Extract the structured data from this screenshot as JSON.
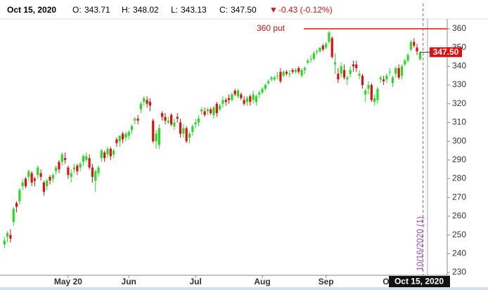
{
  "header": {
    "date": "Oct 15, 2020",
    "open_label": "O:",
    "open": "343.71",
    "high_label": "H:",
    "high": "348.02",
    "low_label": "L:",
    "low": "343.13",
    "close_label": "C:",
    "close": "347.50",
    "change_marker": "▼",
    "change": "-0.43 (-0.12%)"
  },
  "chart_data": {
    "type": "candlestick",
    "open": [
      245,
      249,
      250,
      257,
      267,
      268,
      276,
      280,
      281,
      283,
      280,
      282,
      283,
      278,
      276,
      281,
      280,
      284,
      289,
      289,
      291,
      286,
      281,
      285,
      287,
      286,
      289,
      290,
      291,
      286,
      279,
      283,
      291,
      294,
      293,
      296,
      293,
      301,
      300,
      304,
      302,
      303,
      306,
      311,
      312,
      317,
      321,
      322,
      321,
      311,
      300,
      298,
      315,
      313,
      310,
      314,
      308,
      313,
      310,
      304,
      307,
      302,
      305,
      309,
      310,
      316,
      316,
      316,
      317,
      314,
      320,
      317,
      320,
      322,
      323,
      322,
      327,
      324,
      325,
      322,
      321,
      324,
      322,
      321,
      325,
      326,
      328,
      331,
      333,
      333,
      335,
      337,
      335,
      337,
      336,
      338,
      337,
      339,
      335,
      338,
      342,
      344,
      344,
      348,
      348,
      351,
      350,
      353,
      355,
      341,
      336,
      336,
      338,
      333,
      336,
      341,
      341,
      335,
      335,
      325,
      328,
      330,
      321,
      322,
      333,
      333,
      333,
      337,
      331,
      336,
      339,
      335,
      341,
      343,
      349,
      353,
      350,
      343.71
    ],
    "high": [
      249,
      252,
      253,
      265,
      268,
      275,
      280,
      281,
      285,
      284,
      281,
      287,
      285,
      279,
      280,
      282,
      283,
      287,
      290,
      294,
      294,
      287,
      285,
      288,
      288,
      289,
      293,
      294,
      293,
      288,
      285,
      287,
      296,
      295,
      297,
      297,
      296,
      302,
      303,
      305,
      305,
      306,
      309,
      313,
      314,
      321,
      324,
      324,
      323,
      312,
      306,
      309,
      316,
      315,
      313,
      315,
      312,
      315,
      312,
      309,
      308,
      305,
      309,
      312,
      314,
      318,
      318,
      318,
      318,
      319,
      321,
      320,
      324,
      323,
      325,
      326,
      328,
      328,
      326,
      324,
      324,
      325,
      327,
      325,
      327,
      329,
      331,
      333,
      335,
      335,
      337,
      339,
      338,
      338,
      338,
      339,
      339,
      340,
      339,
      340,
      344,
      346,
      348,
      349,
      350,
      352,
      353,
      359,
      356,
      347,
      339,
      342,
      341,
      335,
      340,
      343,
      343,
      338,
      336,
      328,
      332,
      331,
      325,
      329,
      335,
      335,
      336,
      339,
      335,
      340,
      341,
      341,
      344,
      347,
      354,
      355,
      352,
      348.02
    ],
    "low": [
      243,
      246,
      246,
      255,
      262,
      266,
      274,
      275,
      279,
      276,
      276,
      280,
      279,
      271,
      274,
      277,
      278,
      282,
      283,
      287,
      288,
      280,
      278,
      283,
      282,
      284,
      287,
      289,
      285,
      278,
      273,
      281,
      289,
      289,
      291,
      290,
      291,
      297,
      297,
      299,
      300,
      301,
      304,
      309,
      309,
      315,
      319,
      318,
      316,
      299,
      296,
      296,
      311,
      309,
      309,
      308,
      306,
      310,
      302,
      302,
      299,
      299,
      303,
      307,
      308,
      314,
      313,
      314,
      314,
      312,
      313,
      316,
      318,
      319,
      320,
      321,
      324,
      323,
      322,
      319,
      319,
      319,
      320,
      319,
      323,
      325,
      327,
      330,
      332,
      332,
      333,
      331,
      334,
      335,
      334,
      336,
      336,
      336,
      334,
      336,
      341,
      342,
      343,
      346,
      347,
      348,
      349,
      352,
      344,
      336,
      331,
      334,
      333,
      330,
      334,
      337,
      337,
      333,
      328,
      321,
      325,
      321,
      319,
      320,
      331,
      330,
      331,
      335,
      329,
      334,
      333,
      333,
      340,
      342,
      348,
      350,
      346,
      343.13
    ],
    "close": [
      247,
      251,
      248,
      264,
      265,
      274,
      278,
      276,
      284,
      278,
      279,
      286,
      281,
      273,
      279,
      279,
      282,
      286,
      285,
      293,
      290,
      282,
      283,
      286,
      284,
      288,
      292,
      292,
      286,
      281,
      284,
      286,
      295,
      291,
      296,
      292,
      295,
      299,
      303,
      301,
      304,
      305,
      308,
      312,
      311,
      320,
      323,
      320,
      319,
      300,
      304,
      307,
      313,
      311,
      311,
      309,
      310,
      312,
      304,
      307,
      300,
      304,
      308,
      310,
      312,
      317,
      314,
      317,
      315,
      318,
      315,
      319,
      322,
      321,
      322,
      325,
      325,
      327,
      323,
      320,
      323,
      321,
      325,
      324,
      326,
      328,
      330,
      332,
      334,
      334,
      335,
      332,
      337,
      336,
      336,
      337,
      338,
      337,
      338,
      339,
      343,
      344,
      347,
      348,
      350,
      349,
      352,
      358,
      345,
      342,
      333,
      340,
      334,
      334,
      338,
      340,
      339,
      336,
      330,
      327,
      330,
      322,
      323,
      328,
      334,
      332,
      335,
      337,
      334,
      339,
      334,
      340,
      343,
      346,
      353,
      351,
      347.93,
      347.5
    ],
    "up_color": "#22dd22",
    "down_color": "#dd1111",
    "xlim": [
      -1,
      139
    ],
    "xticks": [
      {
        "value": 21,
        "label": "May 20"
      },
      {
        "value": 41,
        "label": "Jun"
      },
      {
        "value": 63,
        "label": "Jul"
      },
      {
        "value": 85,
        "label": "Aug"
      },
      {
        "value": 106,
        "label": "Sep"
      },
      {
        "value": 127,
        "label": "Oct"
      }
    ],
    "ylim": [
      229,
      364
    ],
    "yticks": [
      230,
      240,
      250,
      260,
      270,
      280,
      290,
      300,
      310,
      320,
      330,
      340,
      350,
      360
    ],
    "last_price_label": "347.50",
    "last_date_label": "Oct 15, 2020",
    "annotation": {
      "text": "360 put",
      "value": 360,
      "color": "#dd1111"
    },
    "event": {
      "x": 138,
      "label": "10/16/2020 (1)",
      "color": "#9b4fb0"
    }
  }
}
